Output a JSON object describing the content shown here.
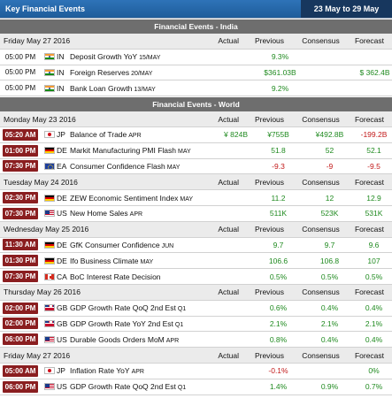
{
  "header": {
    "title": "Key Financial Events",
    "range": "23 May to 29 May"
  },
  "india": {
    "title": "Financial Events - India",
    "columns": {
      "actual": "Actual",
      "previous": "Previous",
      "consensus": "Consensus",
      "forecast": "Forecast"
    },
    "date": "Friday May 27 2016",
    "rows": [
      {
        "time": "05:00 PM",
        "cc": "IN",
        "event": "Deposit Growth YoY",
        "period": "15/MAY",
        "actual": "",
        "previous": "9.3%",
        "consensus": "",
        "forecast": ""
      },
      {
        "time": "05:00 PM",
        "cc": "IN",
        "event": "Foreign Reserves",
        "period": "20/MAY",
        "actual": "",
        "previous": "$361.03B",
        "consensus": "",
        "forecast": "$ 362.4B"
      },
      {
        "time": "05:00 PM",
        "cc": "IN",
        "event": "Bank Loan Growth",
        "period": "13/MAY",
        "actual": "",
        "previous": "9.2%",
        "consensus": "",
        "forecast": ""
      }
    ]
  },
  "world": {
    "title": "Financial Events - World",
    "columns": {
      "actual": "Actual",
      "previous": "Previous",
      "consensus": "Consensus",
      "forecast": "Forecast"
    },
    "days": [
      {
        "date": "Monday May 23 2016",
        "rows": [
          {
            "time": "05:20 AM",
            "cc": "JP",
            "event": "Balance of Trade",
            "period": "APR",
            "actual": "¥ 824B",
            "previous": "¥755B",
            "consensus": "¥492.8B",
            "forecast": "-199.2B"
          },
          {
            "time": "01:00 PM",
            "cc": "DE",
            "event": "Markit Manufacturing PMI Flash",
            "period": "MAY",
            "actual": "",
            "previous": "51.8",
            "consensus": "52",
            "forecast": "52.1"
          },
          {
            "time": "07:30 PM",
            "cc": "EA",
            "event": "Consumer Confidence Flash",
            "period": "MAY",
            "actual": "",
            "previous": "-9.3",
            "consensus": "-9",
            "forecast": "-9.5"
          }
        ]
      },
      {
        "date": "Tuesday May 24 2016",
        "rows": [
          {
            "time": "02:30 PM",
            "cc": "DE",
            "event": "ZEW Economic Sentiment Index",
            "period": "MAY",
            "actual": "",
            "previous": "11.2",
            "consensus": "12",
            "forecast": "12.9"
          },
          {
            "time": "07:30 PM",
            "cc": "US",
            "event": "New Home Sales",
            "period": "APR",
            "actual": "",
            "previous": "511K",
            "consensus": "523K",
            "forecast": "531K"
          }
        ]
      },
      {
        "date": "Wednesday May 25 2016",
        "rows": [
          {
            "time": "11:30 AM",
            "cc": "DE",
            "event": "GfK Consumer Confidence",
            "period": "JUN",
            "actual": "",
            "previous": "9.7",
            "consensus": "9.7",
            "forecast": "9.6"
          },
          {
            "time": "01:30 PM",
            "cc": "DE",
            "event": "Ifo Business Climate",
            "period": "MAY",
            "actual": "",
            "previous": "106.6",
            "consensus": "106.8",
            "forecast": "107"
          },
          {
            "time": "07:30 PM",
            "cc": "CA",
            "event": "BoC Interest Rate Decision",
            "period": "",
            "actual": "",
            "previous": "0.5%",
            "consensus": "0.5%",
            "forecast": "0.5%"
          }
        ]
      },
      {
        "date": "Thursday May 26 2016",
        "rows": [
          {
            "time": "02:00 PM",
            "cc": "GB",
            "event": "GDP Growth Rate QoQ 2nd Est",
            "period": "Q1",
            "actual": "",
            "previous": "0.6%",
            "consensus": "0.4%",
            "forecast": "0.4%"
          },
          {
            "time": "02:00 PM",
            "cc": "GB",
            "event": "GDP Growth Rate YoY 2nd Est",
            "period": "Q1",
            "actual": "",
            "previous": "2.1%",
            "consensus": "2.1%",
            "forecast": "2.1%"
          },
          {
            "time": "06:00 PM",
            "cc": "US",
            "event": "Durable Goods Orders MoM",
            "period": "APR",
            "actual": "",
            "previous": "0.8%",
            "consensus": "0.4%",
            "forecast": "0.4%"
          }
        ]
      },
      {
        "date": "Friday May 27 2016",
        "rows": [
          {
            "time": "05:00 AM",
            "cc": "JP",
            "event": "Inflation Rate YoY",
            "period": "APR",
            "actual": "",
            "previous": "-0.1%",
            "consensus": "",
            "forecast": "0%"
          },
          {
            "time": "06:00 PM",
            "cc": "US",
            "event": "GDP Growth Rate QoQ 2nd Est",
            "period": "Q1",
            "actual": "",
            "previous": "1.4%",
            "consensus": "0.9%",
            "forecast": "0.7%"
          }
        ]
      }
    ]
  },
  "flag_icons": {
    "IN": "india-flag-icon",
    "JP": "japan-flag-icon",
    "DE": "germany-flag-icon",
    "EA": "euro-area-flag-icon",
    "US": "usa-flag-icon",
    "GB": "uk-flag-icon",
    "CA": "canada-flag-icon"
  },
  "colors": {
    "header_blue": "#2e73b8",
    "range_navy": "#17375e",
    "section_grey": "#6e6e6e",
    "time_badge": "#8a1e20",
    "value_green": "#1f8a1f",
    "value_red": "#c21818"
  }
}
